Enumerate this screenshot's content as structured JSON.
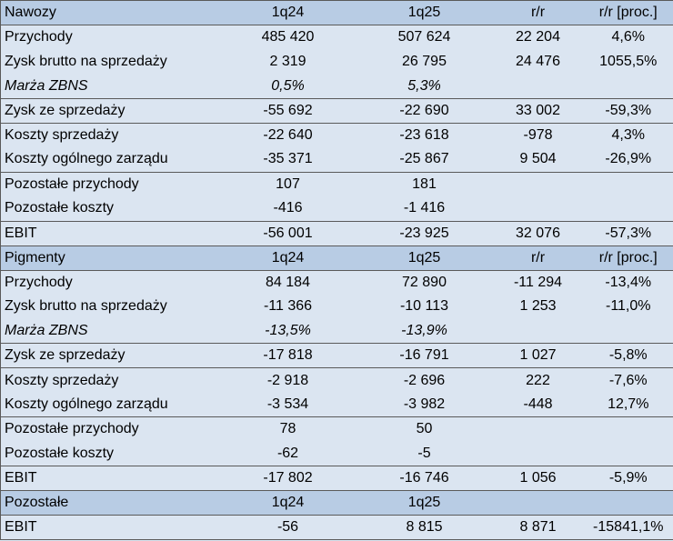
{
  "table": {
    "rows": [
      {
        "kind": "header",
        "cells": [
          "Nawozy",
          "1q24",
          "1q25",
          "r/r",
          "r/r [proc.]"
        ]
      },
      {
        "kind": "sep",
        "cells": [
          "Przychody",
          "485 420",
          "507 624",
          "22 204",
          "4,6%"
        ]
      },
      {
        "kind": "plain",
        "cells": [
          "Zysk brutto na sprzedaży",
          "2 319",
          "26 795",
          "24 476",
          "1055,5%"
        ]
      },
      {
        "kind": "italic",
        "cells": [
          "Marża ZBNS",
          "0,5%",
          "5,3%",
          "",
          ""
        ]
      },
      {
        "kind": "sep",
        "cells": [
          "Zysk ze sprzedaży",
          "-55 692",
          "-22 690",
          "33 002",
          "-59,3%"
        ]
      },
      {
        "kind": "sep",
        "cells": [
          "Koszty sprzedaży",
          "-22 640",
          "-23 618",
          "-978",
          "4,3%"
        ]
      },
      {
        "kind": "plain",
        "cells": [
          "Koszty ogólnego zarządu",
          "-35 371",
          "-25 867",
          "9 504",
          "-26,9%"
        ]
      },
      {
        "kind": "sep",
        "cells": [
          "Pozostałe przychody",
          "107",
          "181",
          "",
          ""
        ]
      },
      {
        "kind": "plain",
        "cells": [
          "Pozostałe koszty",
          "-416",
          "-1 416",
          "",
          ""
        ]
      },
      {
        "kind": "sep",
        "cells": [
          "EBIT",
          "-56 001",
          "-23 925",
          "32 076",
          "-57,3%"
        ]
      },
      {
        "kind": "header",
        "cells": [
          "Pigmenty",
          "1q24",
          "1q25",
          "r/r",
          "r/r [proc.]"
        ]
      },
      {
        "kind": "sep",
        "cells": [
          "Przychody",
          "84 184",
          "72 890",
          "-11 294",
          "-13,4%"
        ]
      },
      {
        "kind": "plain",
        "cells": [
          "Zysk brutto na sprzedaży",
          "-11 366",
          "-10 113",
          "1 253",
          "-11,0%"
        ]
      },
      {
        "kind": "italic",
        "cells": [
          "Marża ZBNS",
          "-13,5%",
          "-13,9%",
          "",
          ""
        ]
      },
      {
        "kind": "sep",
        "cells": [
          "Zysk ze sprzedaży",
          "-17 818",
          "-16 791",
          "1 027",
          "-5,8%"
        ]
      },
      {
        "kind": "sep",
        "cells": [
          "Koszty sprzedaży",
          "-2 918",
          "-2 696",
          "222",
          "-7,6%"
        ]
      },
      {
        "kind": "plain",
        "cells": [
          "Koszty ogólnego zarządu",
          "-3 534",
          "-3 982",
          "-448",
          "12,7%"
        ]
      },
      {
        "kind": "sep",
        "cells": [
          "Pozostałe przychody",
          "78",
          "50",
          "",
          ""
        ]
      },
      {
        "kind": "plain",
        "cells": [
          "Pozostałe koszty",
          "-62",
          "-5",
          "",
          ""
        ]
      },
      {
        "kind": "sep",
        "cells": [
          "EBIT",
          "-17 802",
          "-16 746",
          "1 056",
          "-5,9%"
        ]
      },
      {
        "kind": "header",
        "cells": [
          "Pozostałe",
          "1q24",
          "1q25",
          "",
          ""
        ]
      },
      {
        "kind": "sep",
        "cells": [
          "EBIT",
          "-56",
          "8 815",
          "8 871",
          "-15841,1%"
        ]
      }
    ]
  }
}
